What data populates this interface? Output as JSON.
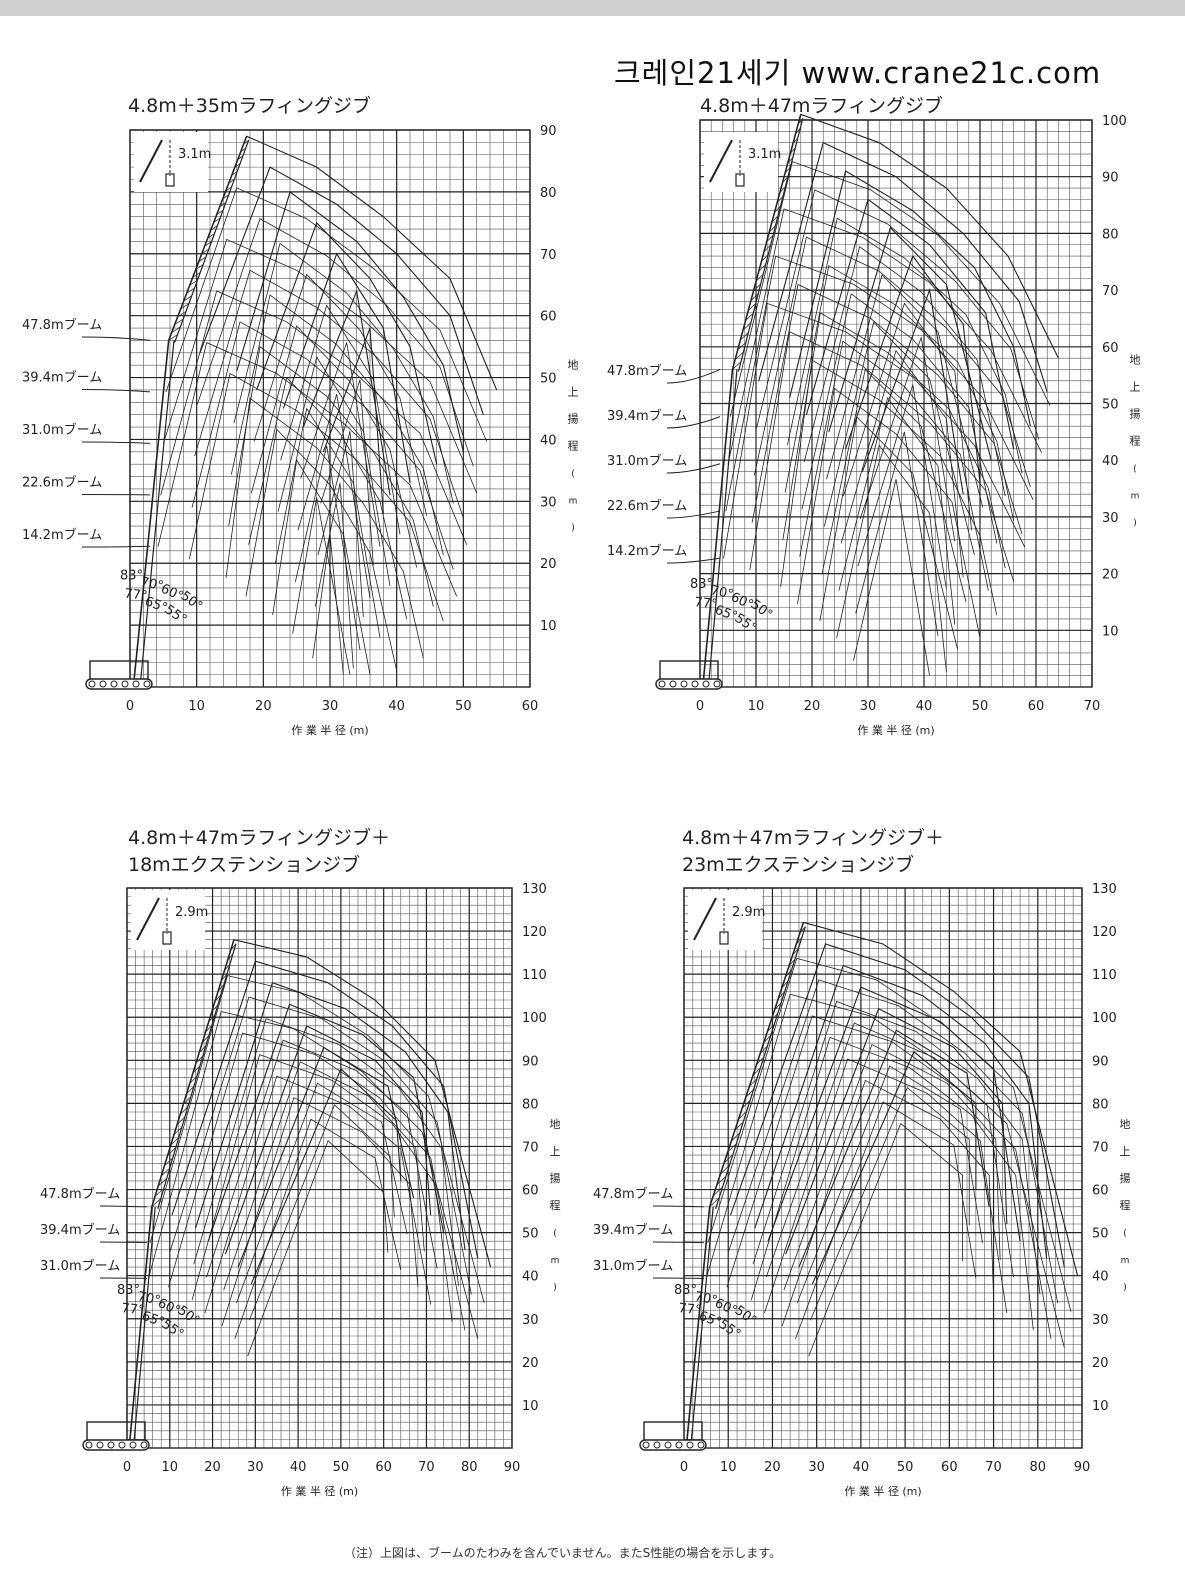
{
  "header": {
    "title": "크레인21세기 www.crane21c.com"
  },
  "footnote": "（注）上図は、ブームのたわみを含んでいません。またS性能の場合を示します。",
  "chart_data": [
    {
      "type": "line",
      "title": "4.8m＋35mラフィングジブ",
      "xlabel": "作 業 半 径 (m)",
      "ylabel": "地上揚程 (m)",
      "xlim": [
        0,
        60
      ],
      "ylim": [
        0,
        90
      ],
      "xticks": [
        0,
        10,
        20,
        30,
        40,
        50,
        60
      ],
      "yticks": [
        10,
        20,
        30,
        40,
        50,
        60,
        70,
        80,
        90
      ],
      "inset_label": "3.1m",
      "boom_labels": [
        "47.8mブーム",
        "39.4mブーム",
        "31.0mブーム",
        "22.6mブーム",
        "14.2mブーム"
      ],
      "boom_lengths": [
        47.8,
        39.4,
        31.0,
        22.6,
        14.2
      ],
      "jib_angles": [
        "83°",
        "77°",
        "70°",
        "65°",
        "60°",
        "55°",
        "50°"
      ],
      "jib_length": 35,
      "jib_offset": 4.8,
      "boom_angle": 83,
      "series": [
        {
          "name": "83°",
          "x": [
            5.8,
            17.5,
            28,
            38,
            48,
            55
          ],
          "y": [
            56,
            89,
            84,
            76,
            66,
            48
          ]
        },
        {
          "name": "77°",
          "x": [
            10.5,
            21,
            31,
            40,
            48,
            53
          ],
          "y": [
            54,
            84,
            78,
            70,
            60,
            44
          ]
        },
        {
          "name": "70°",
          "x": [
            16,
            24,
            34,
            41,
            47,
            50
          ],
          "y": [
            51,
            80,
            72,
            63,
            52,
            38
          ]
        },
        {
          "name": "65°",
          "x": [
            19,
            28,
            36,
            42,
            46
          ],
          "y": [
            48,
            75,
            66,
            55,
            36
          ]
        },
        {
          "name": "60°",
          "x": [
            23,
            31,
            38,
            42
          ],
          "y": [
            45,
            70,
            58,
            33
          ]
        },
        {
          "name": "55°",
          "x": [
            26,
            34,
            39
          ],
          "y": [
            42,
            64,
            31
          ]
        },
        {
          "name": "50°",
          "x": [
            29,
            36,
            38
          ],
          "y": [
            38,
            58,
            28
          ]
        }
      ]
    },
    {
      "type": "line",
      "title": "4.8m＋47mラフィングジブ",
      "xlabel": "作 業 半 径 (m)",
      "ylabel": "地上揚程 (m)",
      "xlim": [
        0,
        70
      ],
      "ylim": [
        0,
        100
      ],
      "xticks": [
        0,
        10,
        20,
        30,
        40,
        50,
        60,
        70
      ],
      "yticks": [
        10,
        20,
        30,
        40,
        50,
        60,
        70,
        80,
        90,
        100
      ],
      "inset_label": "3.1m",
      "boom_labels": [
        "47.8mブーム",
        "39.4mブーム",
        "31.0mブーム",
        "22.6mブーム",
        "14.2mブーム"
      ],
      "boom_lengths": [
        47.8,
        39.4,
        31.0,
        22.6,
        14.2
      ],
      "jib_angles": [
        "83°",
        "77°",
        "70°",
        "65°",
        "60°",
        "55°",
        "50°"
      ],
      "jib_length": 47,
      "jib_offset": 4.8,
      "boom_angle": 83,
      "series": [
        {
          "name": "83°",
          "x": [
            5.8,
            18,
            32,
            44,
            55,
            64
          ],
          "y": [
            56,
            101,
            96,
            88,
            76,
            58
          ]
        },
        {
          "name": "77°",
          "x": [
            10.5,
            22,
            35,
            47,
            57,
            62
          ],
          "y": [
            54,
            96,
            90,
            80,
            68,
            52
          ]
        },
        {
          "name": "70°",
          "x": [
            16,
            26,
            38,
            49,
            56,
            59
          ],
          "y": [
            51,
            91,
            84,
            74,
            60,
            46
          ]
        },
        {
          "name": "65°",
          "x": [
            19,
            30,
            41,
            51,
            56
          ],
          "y": [
            48,
            86,
            78,
            66,
            42
          ]
        },
        {
          "name": "60°",
          "x": [
            23,
            34,
            44,
            52
          ],
          "y": [
            45,
            81,
            71,
            40
          ]
        },
        {
          "name": "55°",
          "x": [
            26,
            38,
            47,
            50
          ],
          "y": [
            42,
            76,
            64,
            36
          ]
        },
        {
          "name": "50°",
          "x": [
            29,
            41,
            47
          ],
          "y": [
            38,
            70,
            34
          ]
        }
      ]
    },
    {
      "type": "line",
      "title": "4.8m＋47mラフィングジブ＋\n18mエクステンションジブ",
      "xlabel": "作 業 半 径 (m)",
      "ylabel": "地上揚程 (m)",
      "xlim": [
        0,
        90
      ],
      "ylim": [
        0,
        130
      ],
      "xticks": [
        0,
        10,
        20,
        30,
        40,
        50,
        60,
        70,
        80,
        90
      ],
      "yticks": [
        10,
        20,
        30,
        40,
        50,
        60,
        70,
        80,
        90,
        100,
        110,
        120,
        130
      ],
      "inset_label": "2.9m",
      "boom_labels": [
        "47.8mブーム",
        "39.4mブーム",
        "31.0mブーム"
      ],
      "boom_lengths": [
        47.8,
        39.4,
        31.0
      ],
      "jib_angles": [
        "83°",
        "77°",
        "70°",
        "65°",
        "60°",
        "55°",
        "50°"
      ],
      "jib_length": 47,
      "extension_length": 18,
      "jib_offset": 4.8,
      "boom_angle": 83,
      "series": [
        {
          "name": "83°",
          "x": [
            5.8,
            25,
            42,
            58,
            72,
            85
          ],
          "y": [
            56,
            118,
            114,
            104,
            90,
            42
          ]
        },
        {
          "name": "77°",
          "x": [
            10.5,
            30,
            47,
            62,
            74,
            82
          ],
          "y": [
            54,
            113,
            108,
            98,
            84,
            44
          ]
        },
        {
          "name": "70°",
          "x": [
            16,
            34,
            51,
            65,
            75,
            79
          ],
          "y": [
            51,
            108,
            102,
            92,
            78,
            46
          ]
        },
        {
          "name": "65°",
          "x": [
            19,
            38,
            55,
            67,
            74
          ],
          "y": [
            48,
            103,
            96,
            86,
            50
          ]
        },
        {
          "name": "60°",
          "x": [
            23,
            42,
            58,
            69,
            71
          ],
          "y": [
            45,
            98,
            90,
            78,
            54
          ]
        },
        {
          "name": "55°",
          "x": [
            26,
            46,
            61,
            67
          ],
          "y": [
            42,
            93,
            84,
            58
          ]
        },
        {
          "name": "50°",
          "x": [
            29,
            50,
            63,
            64
          ],
          "y": [
            38,
            88,
            76,
            62
          ]
        }
      ]
    },
    {
      "type": "line",
      "title": "4.8m＋47mラフィングジブ＋\n23mエクステンションジブ",
      "xlabel": "作 業 半 径 (m)",
      "ylabel": "地上揚程 (m)",
      "xlim": [
        0,
        90
      ],
      "ylim": [
        0,
        130
      ],
      "xticks": [
        0,
        10,
        20,
        30,
        40,
        50,
        60,
        70,
        80,
        90
      ],
      "yticks": [
        10,
        20,
        30,
        40,
        50,
        60,
        70,
        80,
        90,
        100,
        110,
        120,
        130
      ],
      "inset_label": "2.9m",
      "boom_labels": [
        "47.8mブーム",
        "39.4mブーム",
        "31.0mブーム"
      ],
      "boom_lengths": [
        47.8,
        39.4,
        31.0
      ],
      "jib_angles": [
        "83°",
        "77°",
        "70°",
        "65°",
        "60°",
        "55°",
        "50°"
      ],
      "jib_length": 47,
      "extension_length": 23,
      "jib_offset": 4.8,
      "boom_angle": 83,
      "series": [
        {
          "name": "83°",
          "x": [
            5.8,
            27,
            45,
            61,
            76,
            89
          ],
          "y": [
            56,
            122,
            117,
            106,
            92,
            40
          ]
        },
        {
          "name": "77°",
          "x": [
            10.5,
            32,
            50,
            65,
            78,
            86
          ],
          "y": [
            54,
            117,
            111,
            100,
            86,
            42
          ]
        },
        {
          "name": "70°",
          "x": [
            16,
            36,
            54,
            68,
            78,
            82
          ],
          "y": [
            51,
            112,
            105,
            94,
            80,
            44
          ]
        },
        {
          "name": "65°",
          "x": [
            19,
            40,
            58,
            70,
            76
          ],
          "y": [
            48,
            107,
            99,
            88,
            48
          ]
        },
        {
          "name": "60°",
          "x": [
            23,
            44,
            61,
            72,
            73
          ],
          "y": [
            45,
            102,
            93,
            80,
            52
          ]
        },
        {
          "name": "55°",
          "x": [
            26,
            48,
            64,
            69
          ],
          "y": [
            42,
            97,
            87,
            56
          ]
        },
        {
          "name": "50°",
          "x": [
            29,
            52,
            66,
            66
          ],
          "y": [
            38,
            92,
            80,
            60
          ]
        }
      ]
    }
  ]
}
